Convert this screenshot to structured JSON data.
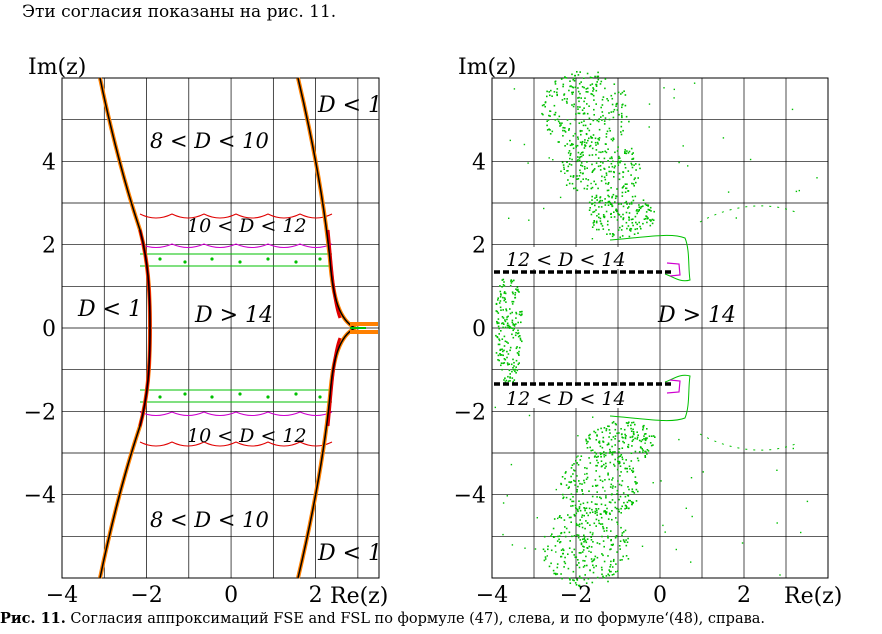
{
  "intro_text": "Эти согласия показаны на рис. 11.",
  "caption": {
    "label": "Рис. 11.",
    "text": "Согласия аппроксимаций FSE and FSL по формуле (47), слева, и по формуле‘(48), справа."
  },
  "axes": {
    "ylabel": "Im(z)",
    "xlabel": "Re(z)",
    "xticks": [
      "−4",
      "−2",
      "0",
      "2"
    ],
    "yticks": [
      "4",
      "2",
      "0",
      "−2",
      "−4"
    ],
    "xrange": [
      -4,
      3.3
    ],
    "yrange": [
      -6,
      6
    ]
  },
  "colors": {
    "grid": "#000000",
    "red": "#e00000",
    "magenta": "#d000d0",
    "green": "#00c000",
    "orange": "#ff8000",
    "black_dash": "#000000"
  },
  "left_panel": {
    "labels": {
      "d_lt_1_tr": "D < 1",
      "r_8_10_top": "8 < D < 10",
      "r_10_12_top": "10 < D < 12",
      "d_lt_1_left": "D < 1",
      "d_gt_14": "D > 14",
      "r_10_12_bot": "10 < D < 12",
      "r_8_10_bot": "8 < D < 10",
      "d_lt_1_br": "D < 1"
    }
  },
  "right_panel": {
    "labels": {
      "r_12_14_top": "12 < D < 14",
      "d_gt_14": "D > 14",
      "r_12_14_bot": "12 < D < 14"
    }
  }
}
